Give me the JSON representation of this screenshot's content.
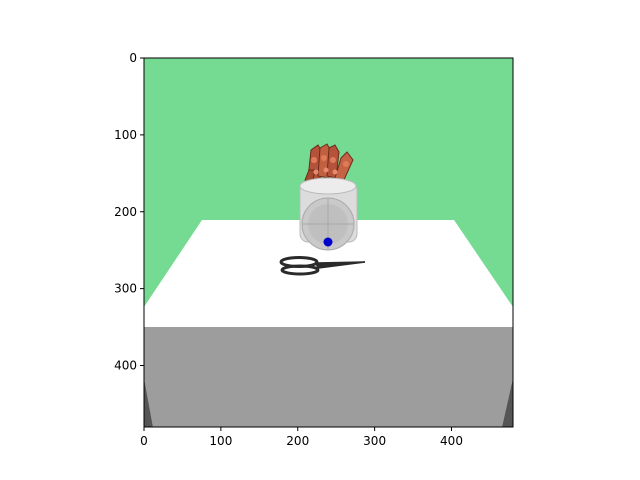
{
  "axes": {
    "x_ticks": [
      "0",
      "100",
      "200",
      "300",
      "400"
    ],
    "y_ticks": [
      "0",
      "100",
      "200",
      "300",
      "400"
    ],
    "x_tick_values": [
      0,
      100,
      200,
      300,
      400
    ],
    "y_tick_values": [
      0,
      100,
      200,
      300,
      400
    ],
    "x_range": [
      0,
      480
    ],
    "y_range": [
      0,
      480
    ]
  },
  "scene": {
    "background_color": "#76db92",
    "table_top_color": "#ffffff",
    "table_front_color": "#9d9d9d",
    "table_leg_color": "#555555",
    "robot_body_color": "#dcdcdc",
    "robot_finger_color": "#b4533a",
    "target_marker_color": "#0000cc",
    "scissors_color": "#2a2a2a",
    "objects": [
      "robot-hand",
      "scissors",
      "table",
      "target-marker"
    ]
  }
}
